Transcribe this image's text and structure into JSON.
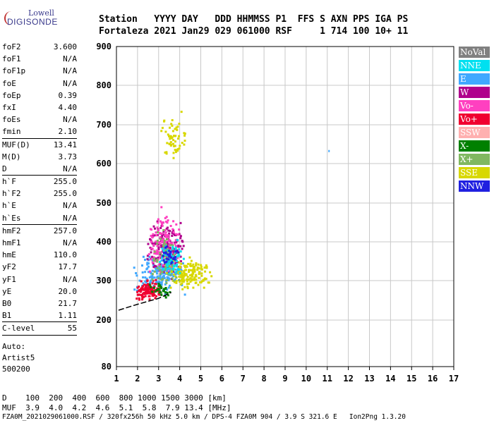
{
  "logo": {
    "line1": "Lowell",
    "line2": "DIGISONDE"
  },
  "header": {
    "line1": "Station   YYYY DAY   DDD HHMMSS P1  FFS S AXN PPS IGA PS",
    "line2": "Fortaleza 2021 Jan29 029 061000 RSF     1 714 100 10+ 11"
  },
  "params": [
    {
      "name": "foF2",
      "value": "3.600",
      "sep": false
    },
    {
      "name": "foF1",
      "value": "N/A",
      "sep": false
    },
    {
      "name": "foF1p",
      "value": "N/A",
      "sep": false
    },
    {
      "name": "foE",
      "value": "N/A",
      "sep": false
    },
    {
      "name": "foEp",
      "value": "0.39",
      "sep": false
    },
    {
      "name": "fxI",
      "value": "4.40",
      "sep": false
    },
    {
      "name": "foEs",
      "value": "N/A",
      "sep": false
    },
    {
      "name": "fmin",
      "value": "2.10",
      "sep": false
    },
    {
      "name": "MUF(D)",
      "value": "13.41",
      "sep": true
    },
    {
      "name": "M(D)",
      "value": "3.73",
      "sep": false
    },
    {
      "name": "D",
      "value": "N/A",
      "sep": false
    },
    {
      "name": "h`F",
      "value": "255.0",
      "sep": true
    },
    {
      "name": "h`F2",
      "value": "255.0",
      "sep": false
    },
    {
      "name": "h`E",
      "value": "N/A",
      "sep": false
    },
    {
      "name": "h`Es",
      "value": "N/A",
      "sep": false
    },
    {
      "name": "hmF2",
      "value": "257.0",
      "sep": true
    },
    {
      "name": "hmF1",
      "value": "N/A",
      "sep": false
    },
    {
      "name": "hmE",
      "value": "110.0",
      "sep": false
    },
    {
      "name": "yF2",
      "value": "17.7",
      "sep": false
    },
    {
      "name": "yF1",
      "value": "N/A",
      "sep": false
    },
    {
      "name": "yE",
      "value": "20.0",
      "sep": false
    },
    {
      "name": "B0",
      "value": "21.7",
      "sep": false
    },
    {
      "name": "B1",
      "value": "1.11",
      "sep": false
    },
    {
      "name": "C-level",
      "value": "55",
      "sep": true
    }
  ],
  "auto": {
    "line1": "Auto:",
    "line2": "Artist5",
    "line3": "500200"
  },
  "legend": [
    {
      "label": "NoVal",
      "color": "#808080"
    },
    {
      "label": "NNE",
      "color": "#00e0f0"
    },
    {
      "label": "E",
      "color": "#40a8ff"
    },
    {
      "label": "W",
      "color": "#b0008c"
    },
    {
      "label": "Vo-",
      "color": "#ff40c0"
    },
    {
      "label": "Vo+",
      "color": "#f00030"
    },
    {
      "label": "SSW",
      "color": "#ffb0b0"
    },
    {
      "label": "X-",
      "color": "#008000"
    },
    {
      "label": "X+",
      "color": "#80b860"
    },
    {
      "label": "SSE",
      "color": "#d8d800"
    },
    {
      "label": "NNW",
      "color": "#2020e0"
    }
  ],
  "bottom": {
    "line1": "D    100  200  400  600  800 1000 1500 3000 [km]",
    "line2": "MUF  3.9  4.0  4.2  4.6  5.1  5.8  7.9 13.4 [MHz]",
    "footer": "FZA0M_2021029061000.RSF / 320fx256h 50 kHz 5.0 km / DPS-4 FZA0M 904 / 3.9 S 321.6 E   Ion2Png 1.3.20"
  },
  "chart_data": {
    "type": "scatter",
    "xlim": [
      1,
      17
    ],
    "ylim": [
      80,
      900
    ],
    "x_ticks": [
      "1",
      "2",
      "3",
      "4",
      "5",
      "6",
      "7",
      "8",
      "9",
      "10",
      "11",
      "12",
      "13",
      "14",
      "15",
      "16",
      "17"
    ],
    "y_ticks": [
      "80",
      "200",
      "300",
      "400",
      "500",
      "600",
      "700",
      "800",
      "900"
    ],
    "y_tick_values": [
      80,
      200,
      300,
      400,
      500,
      600,
      700,
      800,
      900
    ],
    "grid": true,
    "clusters": [
      {
        "series": "E",
        "xmin": 1.7,
        "xmax": 4.3,
        "ymin": 250,
        "ymax": 390,
        "n": 180
      },
      {
        "series": "W",
        "xmin": 2.4,
        "xmax": 4.2,
        "ymin": 290,
        "ymax": 480,
        "n": 200
      },
      {
        "series": "Vo-",
        "xmin": 2.4,
        "xmax": 4.0,
        "ymin": 300,
        "ymax": 500,
        "n": 120
      },
      {
        "series": "Vo+",
        "xmin": 1.8,
        "xmax": 3.1,
        "ymin": 245,
        "ymax": 310,
        "n": 120
      },
      {
        "series": "SSE",
        "xmin": 3.3,
        "xmax": 5.6,
        "ymin": 270,
        "ymax": 370,
        "n": 160
      },
      {
        "series": "SSE",
        "xmin": 3.0,
        "xmax": 4.3,
        "ymin": 580,
        "ymax": 740,
        "n": 60
      },
      {
        "series": "X+",
        "xmin": 2.5,
        "xmax": 4.0,
        "ymin": 250,
        "ymax": 450,
        "n": 80
      },
      {
        "series": "X-",
        "xmin": 2.5,
        "xmax": 3.6,
        "ymin": 255,
        "ymax": 300,
        "n": 30
      },
      {
        "series": "NNE",
        "xmin": 3.0,
        "xmax": 4.3,
        "ymin": 300,
        "ymax": 420,
        "n": 60
      },
      {
        "series": "NNW",
        "xmin": 3.0,
        "xmax": 4.0,
        "ymin": 330,
        "ymax": 400,
        "n": 30
      }
    ],
    "trace": [
      [
        1.1,
        225
      ],
      [
        2.0,
        240
      ],
      [
        3.0,
        255
      ],
      [
        3.6,
        270
      ]
    ]
  }
}
